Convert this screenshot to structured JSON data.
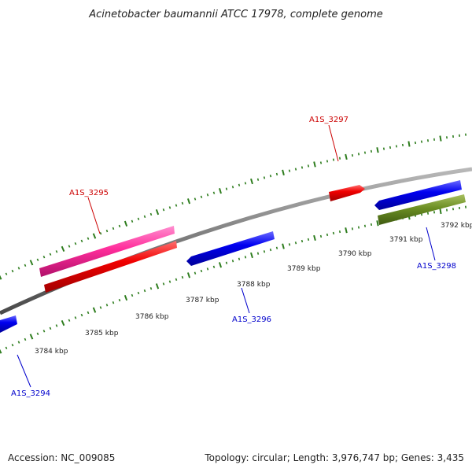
{
  "title": "Acinetobacter baumannii ATCC 17978, complete genome",
  "footer": {
    "accession": "Accession: NC_009085",
    "topology": "Topology: circular; Length: 3,976,747 bp; Genes: 3,435"
  },
  "scale_labels": [
    "3784 kbp",
    "3785 kbp",
    "3786 kbp",
    "3787 kbp",
    "3788 kbp",
    "3789 kbp",
    "3790 kbp",
    "3791 kbp",
    "3792 kbp"
  ],
  "genes": [
    {
      "id": "A1S_3294",
      "label": "A1S_3294",
      "color": "#0000cc"
    },
    {
      "id": "A1S_3295",
      "label": "A1S_3295",
      "color": "#cc0000"
    },
    {
      "id": "A1S_3296",
      "label": "A1S_3296",
      "color": "#0000cc"
    },
    {
      "id": "A1S_3297",
      "label": "A1S_3297",
      "color": "#cc0000"
    },
    {
      "id": "A1S_3298",
      "label": "A1S_3298",
      "color": "#0000cc"
    }
  ],
  "colors": {
    "backbone": "#808080",
    "tick": "#2e7d1e",
    "forward_cds": "#ff0000",
    "reverse_cds": "#0000ff",
    "pink_feature": "#ff2d9b",
    "olive_feature": "#6b8e23"
  }
}
